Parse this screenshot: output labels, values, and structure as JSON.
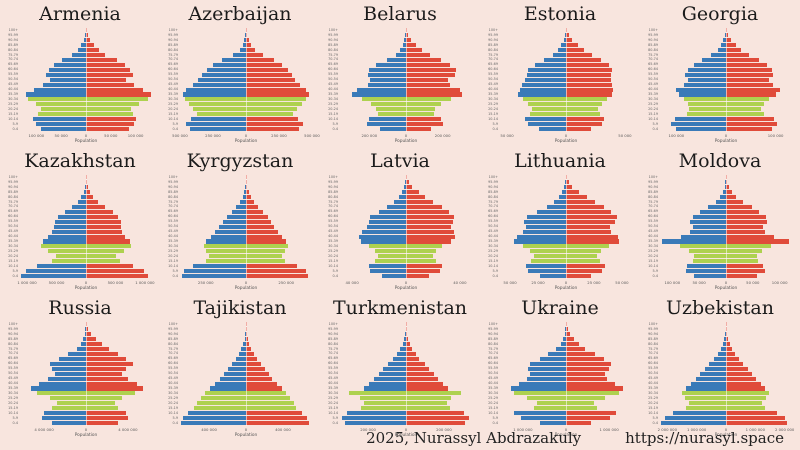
{
  "page": {
    "background": "#f8e5de"
  },
  "colors": {
    "male": "#3a7ab8",
    "female": "#e04b3a",
    "youth_highlight": "#aed14f",
    "title_text": "#1b1b1b",
    "axis_text": "#555555"
  },
  "credit": {
    "author_line": "2025, Nurassyl Abdrazakuly",
    "url": "https://nurasyl.space"
  },
  "chart_data": {
    "type": "bar",
    "subtype": "population-pyramid-grid",
    "unit": "persons",
    "xlabel": "Population",
    "legend": "none",
    "age_groups_top_to_bottom": [
      "100+",
      "95-99",
      "90-94",
      "85-89",
      "80-84",
      "75-79",
      "70-74",
      "65-69",
      "60-64",
      "55-59",
      "50-54",
      "45-49",
      "40-44",
      "35-39",
      "30-34",
      "25-29",
      "20-24",
      "15-19",
      "10-14",
      "5-9",
      "0-4"
    ],
    "youth_highlight_age_indices": [
      14,
      15,
      16,
      17
    ],
    "youth_highlight_ages": "15-34",
    "charts": [
      {
        "country": "Armenia",
        "axis_max": 133000,
        "ticks": {
          "values": [
            -100000,
            -50000,
            0,
            50000,
            100000
          ],
          "labels": [
            "100 000",
            "50 000",
            "0",
            "50 000",
            "100 000"
          ]
        },
        "male": [
          1000,
          3000,
          5000,
          10000,
          17000,
          29000,
          49000,
          65000,
          75000,
          81000,
          72000,
          86000,
          104000,
          120000,
          117000,
          101000,
          91000,
          96000,
          107000,
          101000,
          91000
        ],
        "female": [
          1000,
          4000,
          9000,
          17000,
          26000,
          39000,
          62000,
          78000,
          88000,
          94000,
          81000,
          96000,
          114000,
          130000,
          124000,
          107000,
          91000,
          94000,
          101000,
          96000,
          86000
        ]
      },
      {
        "country": "Azerbaijan",
        "axis_max": 500000,
        "ticks": {
          "values": [
            -500000,
            -250000,
            0,
            250000,
            500000
          ],
          "labels": [
            "500 000",
            "250 000",
            "0",
            "250 000",
            "500 000"
          ]
        },
        "male": [
          2000,
          5000,
          12000,
          24000,
          48000,
          96000,
          182000,
          250000,
          298000,
          336000,
          365000,
          403000,
          451000,
          480000,
          461000,
          432000,
          398000,
          374000,
          413000,
          456000,
          422000
        ],
        "female": [
          3000,
          7000,
          19000,
          38000,
          67000,
          125000,
          211000,
          274000,
          317000,
          346000,
          374000,
          408000,
          456000,
          475000,
          456000,
          422000,
          384000,
          355000,
          394000,
          432000,
          398000
        ]
      },
      {
        "country": "Belarus",
        "axis_max": 360000,
        "ticks": {
          "values": [
            -200000,
            0,
            200000
          ],
          "labels": [
            "200 000",
            "0",
            "200 000"
          ]
        },
        "male": [
          1000,
          4000,
          9000,
          18000,
          32000,
          56000,
          105000,
          161000,
          203000,
          210000,
          196000,
          210000,
          266000,
          294000,
          238000,
          189000,
          165000,
          154000,
          200000,
          214000,
          144000
        ],
        "female": [
          4000,
          11000,
          28000,
          53000,
          88000,
          133000,
          189000,
          238000,
          273000,
          266000,
          231000,
          238000,
          294000,
          308000,
          245000,
          193000,
          158000,
          151000,
          189000,
          203000,
          137000
        ]
      },
      {
        "country": "Estonia",
        "axis_max": 56000,
        "ticks": {
          "values": [
            -50000,
            0,
            50000
          ],
          "labels": [
            "50 000",
            "0",
            "50 000"
          ]
        },
        "male": [
          300,
          700,
          1700,
          3900,
          6600,
          11000,
          18700,
          26400,
          31900,
          33000,
          34700,
          37400,
          39100,
          40700,
          36300,
          31900,
          29200,
          30800,
          34700,
          31900,
          22600
        ],
        "female": [
          700,
          2200,
          5500,
          9900,
          15400,
          22000,
          29700,
          36300,
          39100,
          38000,
          38000,
          39100,
          40200,
          39100,
          34700,
          30300,
          27000,
          29200,
          32500,
          30300,
          21500
        ]
      },
      {
        "country": "Georgia",
        "axis_max": 133000,
        "ticks": {
          "values": [
            -100000,
            0,
            100000
          ],
          "labels": [
            "100 000",
            "0",
            "100 000"
          ]
        },
        "male": [
          1000,
          2300,
          5200,
          10400,
          16900,
          29900,
          48100,
          63700,
          76700,
          81900,
          76700,
          84500,
          100100,
          94900,
          84500,
          76700,
          74100,
          79300,
          102700,
          110500,
          100100
        ],
        "female": [
          1600,
          4600,
          10400,
          19500,
          29900,
          45500,
          66300,
          81900,
          92300,
          94900,
          87100,
          94900,
          107900,
          100100,
          87100,
          76700,
          71500,
          76700,
          97500,
          102700,
          92300
        ]
      },
      {
        "country": "Kazakhstan",
        "axis_max": 1120000,
        "ticks": {
          "values": [
            -1000000,
            -500000,
            0,
            500000,
            1000000
          ],
          "labels": [
            "1 000 000",
            "500 000",
            "0",
            "500 000",
            "1 000 000"
          ]
        },
        "male": [
          2000,
          7000,
          17000,
          39000,
          77000,
          143000,
          242000,
          363000,
          473000,
          528000,
          550000,
          583000,
          638000,
          726000,
          770000,
          638000,
          517000,
          583000,
          836000,
          1023000,
          1100000
        ],
        "female": [
          4000,
          13000,
          33000,
          66000,
          121000,
          209000,
          330000,
          462000,
          550000,
          594000,
          594000,
          616000,
          660000,
          748000,
          770000,
          638000,
          517000,
          572000,
          803000,
          979000,
          1045000
        ]
      },
      {
        "country": "Kyrgyzstan",
        "axis_max": 410000,
        "ticks": {
          "values": [
            -250000,
            0,
            250000
          ],
          "labels": [
            "250 000",
            "0",
            "250 000"
          ]
        },
        "male": [
          1000,
          2000,
          5000,
          10000,
          20000,
          36000,
          60000,
          88000,
          120000,
          144000,
          168000,
          192000,
          220000,
          248000,
          264000,
          248000,
          232000,
          248000,
          328000,
          388000,
          400000
        ],
        "female": [
          2000,
          4000,
          8000,
          16000,
          28000,
          48000,
          76000,
          108000,
          136000,
          156000,
          176000,
          200000,
          224000,
          248000,
          260000,
          240000,
          224000,
          240000,
          316000,
          372000,
          384000
        ]
      },
      {
        "country": "Latvia",
        "axis_max": 49000,
        "ticks": {
          "values": [
            -40000,
            0,
            40000
          ],
          "labels": [
            "40 000",
            "0",
            "40 000"
          ]
        },
        "male": [
          200,
          500,
          1400,
          2900,
          5300,
          8600,
          14400,
          20200,
          26400,
          27800,
          28800,
          32600,
          34600,
          33600,
          27800,
          23000,
          21100,
          23000,
          27800,
          26900,
          18200
        ],
        "female": [
          600,
          1900,
          4800,
          9600,
          14400,
          20200,
          26400,
          31700,
          35500,
          34600,
          33600,
          35500,
          36500,
          33600,
          26900,
          22100,
          20200,
          22100,
          26400,
          25400,
          17300
        ]
      },
      {
        "country": "Lithuania",
        "axis_max": 59000,
        "ticks": {
          "values": [
            -50000,
            -25000,
            0,
            25000,
            50000
          ],
          "labels": [
            "50 000",
            "25 000",
            "0",
            "25 000",
            "50 000"
          ]
        },
        "male": [
          200,
          600,
          1700,
          3500,
          6400,
          10400,
          17400,
          26100,
          34800,
          37700,
          36000,
          38300,
          44100,
          46400,
          38300,
          31900,
          29000,
          31300,
          36000,
          33600,
          23200
        ],
        "female": [
          700,
          2300,
          5800,
          11600,
          18600,
          26100,
          33600,
          40600,
          45200,
          44100,
          39400,
          40600,
          46400,
          47600,
          38300,
          31300,
          27800,
          30200,
          34800,
          32500,
          22000
        ]
      },
      {
        "country": "Moldova",
        "axis_max": 123000,
        "ticks": {
          "values": [
            -100000,
            -50000,
            0,
            50000,
            100000
          ],
          "labels": [
            "100 000",
            "50 000",
            "0",
            "50 000",
            "100 000"
          ]
        },
        "male": [
          500,
          1200,
          2400,
          6000,
          10800,
          19200,
          33600,
          48000,
          62400,
          67200,
          62400,
          67200,
          84000,
          120000,
          86400,
          69600,
          60000,
          62400,
          72000,
          74400,
          60000
        ],
        "female": [
          1000,
          2400,
          6000,
          12000,
          19200,
          31200,
          48000,
          62400,
          74400,
          76800,
          69600,
          72000,
          88800,
          117600,
          84000,
          67200,
          57600,
          60000,
          69600,
          72000,
          57600
        ]
      },
      {
        "country": "Russia",
        "axis_max": 6300000,
        "ticks": {
          "values": [
            -4000000,
            0,
            4000000
          ],
          "labels": [
            "4 000 000",
            "0",
            "4 000 000"
          ]
        },
        "male": [
          20000,
          50000,
          120000,
          250000,
          500000,
          870000,
          1740000,
          2600000,
          3410000,
          3220000,
          2980000,
          3600000,
          4460000,
          5270000,
          4650000,
          3410000,
          2790000,
          3220000,
          4030000,
          4220000,
          3220000
        ],
        "female": [
          60000,
          190000,
          500000,
          930000,
          1550000,
          2170000,
          3100000,
          3840000,
          4460000,
          3840000,
          3410000,
          3970000,
          4840000,
          5460000,
          4710000,
          3410000,
          2730000,
          3100000,
          3840000,
          4030000,
          3100000
        ]
      },
      {
        "country": "Tajikistan",
        "axis_max": 715000,
        "ticks": {
          "values": [
            -400000,
            0,
            400000
          ],
          "labels": [
            "400 000",
            "0",
            "400 000"
          ]
        },
        "male": [
          1000,
          3000,
          7000,
          14000,
          28000,
          49000,
          77000,
          112000,
          154000,
          196000,
          238000,
          287000,
          336000,
          392000,
          441000,
          490000,
          532000,
          560000,
          630000,
          686000,
          700000
        ],
        "female": [
          2000,
          5000,
          10000,
          21000,
          35000,
          56000,
          84000,
          119000,
          161000,
          203000,
          245000,
          287000,
          336000,
          385000,
          434000,
          476000,
          518000,
          546000,
          609000,
          665000,
          679000
        ]
      },
      {
        "country": "Turkmenistan",
        "axis_max": 348000,
        "ticks": {
          "values": [
            -200000,
            0,
            200000
          ],
          "labels": [
            "200 000",
            "0",
            "200 000"
          ]
        },
        "male": [
          1000,
          2000,
          4000,
          9000,
          17000,
          31000,
          48000,
          68000,
          95000,
          119000,
          143000,
          170000,
          197000,
          224000,
          299000,
          245000,
          224000,
          238000,
          313000,
          340000,
          323000
        ],
        "female": [
          1000,
          2000,
          5000,
          10000,
          20000,
          34000,
          51000,
          71000,
          99000,
          122000,
          146000,
          170000,
          197000,
          221000,
          292000,
          238000,
          218000,
          231000,
          306000,
          330000,
          313000
        ]
      },
      {
        "country": "Ukraine",
        "axis_max": 1530000,
        "ticks": {
          "values": [
            -1000000,
            0,
            1000000
          ],
          "labels": [
            "1 000 000",
            "0",
            "1 000 000"
          ]
        },
        "male": [
          5000,
          12000,
          30000,
          60000,
          120000,
          225000,
          420000,
          600000,
          825000,
          870000,
          825000,
          900000,
          1080000,
          1275000,
          1200000,
          900000,
          675000,
          750000,
          1200000,
          1050000,
          600000
        ],
        "female": [
          12000,
          38000,
          90000,
          180000,
          300000,
          450000,
          675000,
          870000,
          1050000,
          990000,
          900000,
          960000,
          1140000,
          1320000,
          1230000,
          900000,
          660000,
          720000,
          1170000,
          1020000,
          570000
        ]
      },
      {
        "country": "Uzbekistan",
        "axis_max": 2250000,
        "ticks": {
          "values": [
            -2000000,
            -1000000,
            0,
            1000000,
            2000000
          ],
          "labels": [
            "2 000 000",
            "1 000 000",
            "0",
            "1 000 000",
            "2 000 000"
          ]
        },
        "male": [
          4000,
          11000,
          26000,
          55000,
          110000,
          176000,
          286000,
          418000,
          572000,
          726000,
          880000,
          1034000,
          1188000,
          1364000,
          1496000,
          1408000,
          1276000,
          1364000,
          1804000,
          2090000,
          2200000
        ],
        "female": [
          7000,
          15000,
          33000,
          66000,
          121000,
          198000,
          308000,
          440000,
          594000,
          748000,
          902000,
          1034000,
          1188000,
          1342000,
          1474000,
          1364000,
          1232000,
          1320000,
          1738000,
          2002000,
          2090000
        ]
      }
    ]
  }
}
